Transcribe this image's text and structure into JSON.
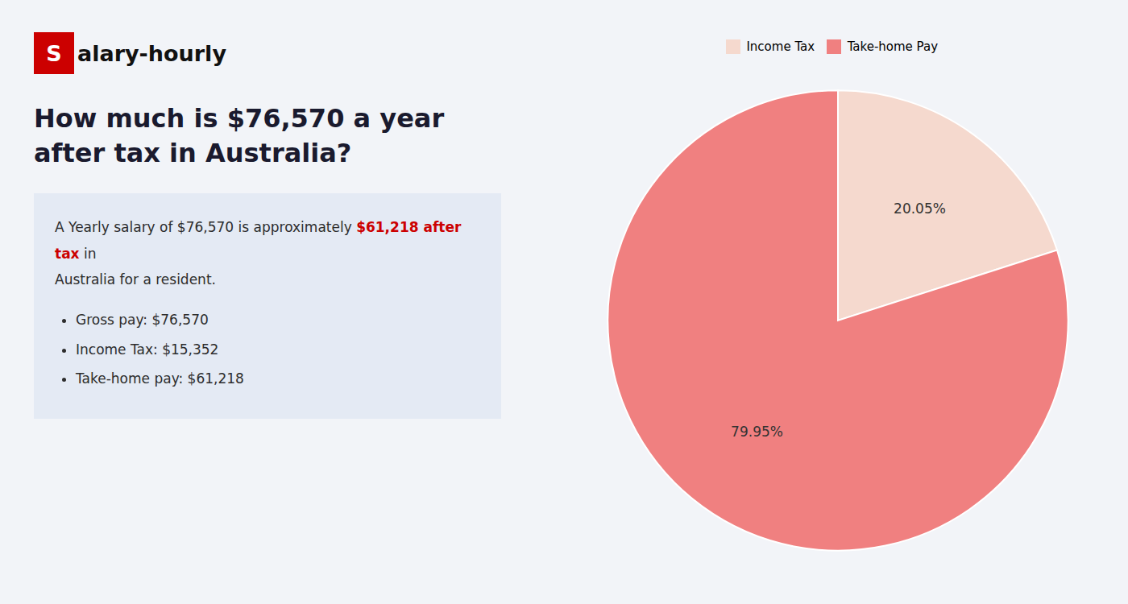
{
  "chart_data": {
    "type": "pie",
    "title": "How much is $76,570 a year after tax in Australia?",
    "annotations": [
      [
        {
          "text": "S",
          "color": "#cc0000"
        },
        {
          "text": "alary-hourly"
        }
      ],
      [
        {
          "text": "A Yearly salary of $76,570 is approximately "
        },
        {
          "text": "$61,218 after tax",
          "color": "#cc0000"
        },
        {
          "text": " in"
        }
      ],
      [
        {
          "text": "Australia for a resident."
        }
      ],
      [
        {
          "text": "Gross pay: $76,570"
        }
      ],
      [
        {
          "text": "Income Tax: $15,352"
        }
      ],
      [
        {
          "text": "Take-home pay: $61,218"
        }
      ]
    ],
    "categories": [
      "Income Tax",
      "Take-home Pay"
    ],
    "values": [
      20.05,
      79.95
    ],
    "value_labels": [
      "20.05%",
      "79.95%"
    ],
    "colors": [
      "#f5d9ce",
      "#f08080"
    ],
    "data_labels": true,
    "legend": "top"
  }
}
